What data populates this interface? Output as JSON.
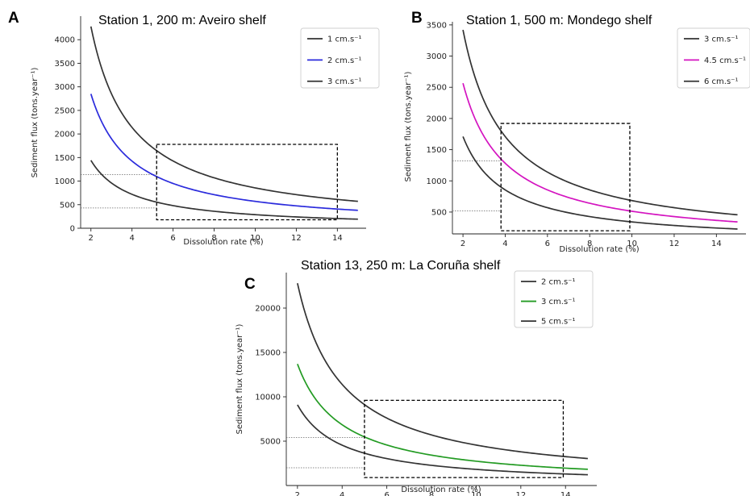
{
  "chart_data": [
    {
      "panel": "A",
      "title": "Station 1, 200 m: Aveiro shelf",
      "type": "line",
      "xlabel": "Dissolution rate (%)",
      "ylabel": "Sediment flux (tons.year⁻¹)",
      "xlim": [
        1.5,
        15.4
      ],
      "ylim": [
        0,
        4500
      ],
      "xticks": [
        2,
        4,
        6,
        8,
        10,
        12,
        14
      ],
      "yticks": [
        0,
        500,
        1000,
        1500,
        2000,
        2500,
        3000,
        3500,
        4000
      ],
      "legend": "top-right",
      "series": [
        {
          "name": "1 cm.s⁻¹",
          "color": "#333333",
          "k": 8560
        },
        {
          "name": "2 cm.s⁻¹",
          "color": "#2b2bdc",
          "k": 5700
        },
        {
          "name": "3 cm.s⁻¹",
          "color": "#333333",
          "k": 2880
        }
      ],
      "highlight_box": {
        "x": [
          5.2,
          14.0
        ],
        "y": [
          180,
          1780
        ]
      },
      "reference_lines_y": [
        1140,
        430
      ]
    },
    {
      "panel": "B",
      "title": "Station 1, 500 m: Mondego shelf",
      "type": "line",
      "xlabel": "Dissolution rate (%)",
      "ylabel": "Sediment flux (tons.year⁻¹)",
      "xlim": [
        1.5,
        15.4
      ],
      "ylim": [
        150,
        3550
      ],
      "xticks": [
        2,
        4,
        6,
        8,
        10,
        12,
        14
      ],
      "yticks": [
        500,
        1000,
        1500,
        2000,
        2500,
        3000,
        3500
      ],
      "legend": "top-right",
      "series": [
        {
          "name": "3 cm.s⁻¹",
          "color": "#333333",
          "k": 6840
        },
        {
          "name": "4.5 cm.s⁻¹",
          "color": "#d414c0",
          "k": 5130
        },
        {
          "name": "6 cm.s⁻¹",
          "color": "#333333",
          "k": 3420
        }
      ],
      "highlight_box": {
        "x": [
          3.8,
          9.9
        ],
        "y": [
          200,
          1920
        ]
      },
      "reference_lines_y": [
        1320,
        520
      ]
    },
    {
      "panel": "C",
      "title": "Station 13, 250 m: La Coruña shelf",
      "type": "line",
      "xlabel": "Dissolution rate (%)",
      "ylabel": "Sediment flux (tons.year⁻¹)",
      "xlim": [
        1.5,
        15.4
      ],
      "ylim": [
        0,
        24000
      ],
      "xticks": [
        2,
        4,
        6,
        8,
        10,
        12,
        14
      ],
      "yticks": [
        5000,
        10000,
        15000,
        20000
      ],
      "legend": "top-right",
      "series": [
        {
          "name": "2 cm.s⁻¹",
          "color": "#333333",
          "k": 45600
        },
        {
          "name": "3 cm.s⁻¹",
          "color": "#239b23",
          "k": 27400
        },
        {
          "name": "5 cm.s⁻¹",
          "color": "#333333",
          "k": 18200
        }
      ],
      "highlight_box": {
        "x": [
          5.0,
          13.9
        ],
        "y": [
          900,
          9600
        ]
      },
      "reference_lines_y": [
        5400,
        2000
      ]
    }
  ]
}
